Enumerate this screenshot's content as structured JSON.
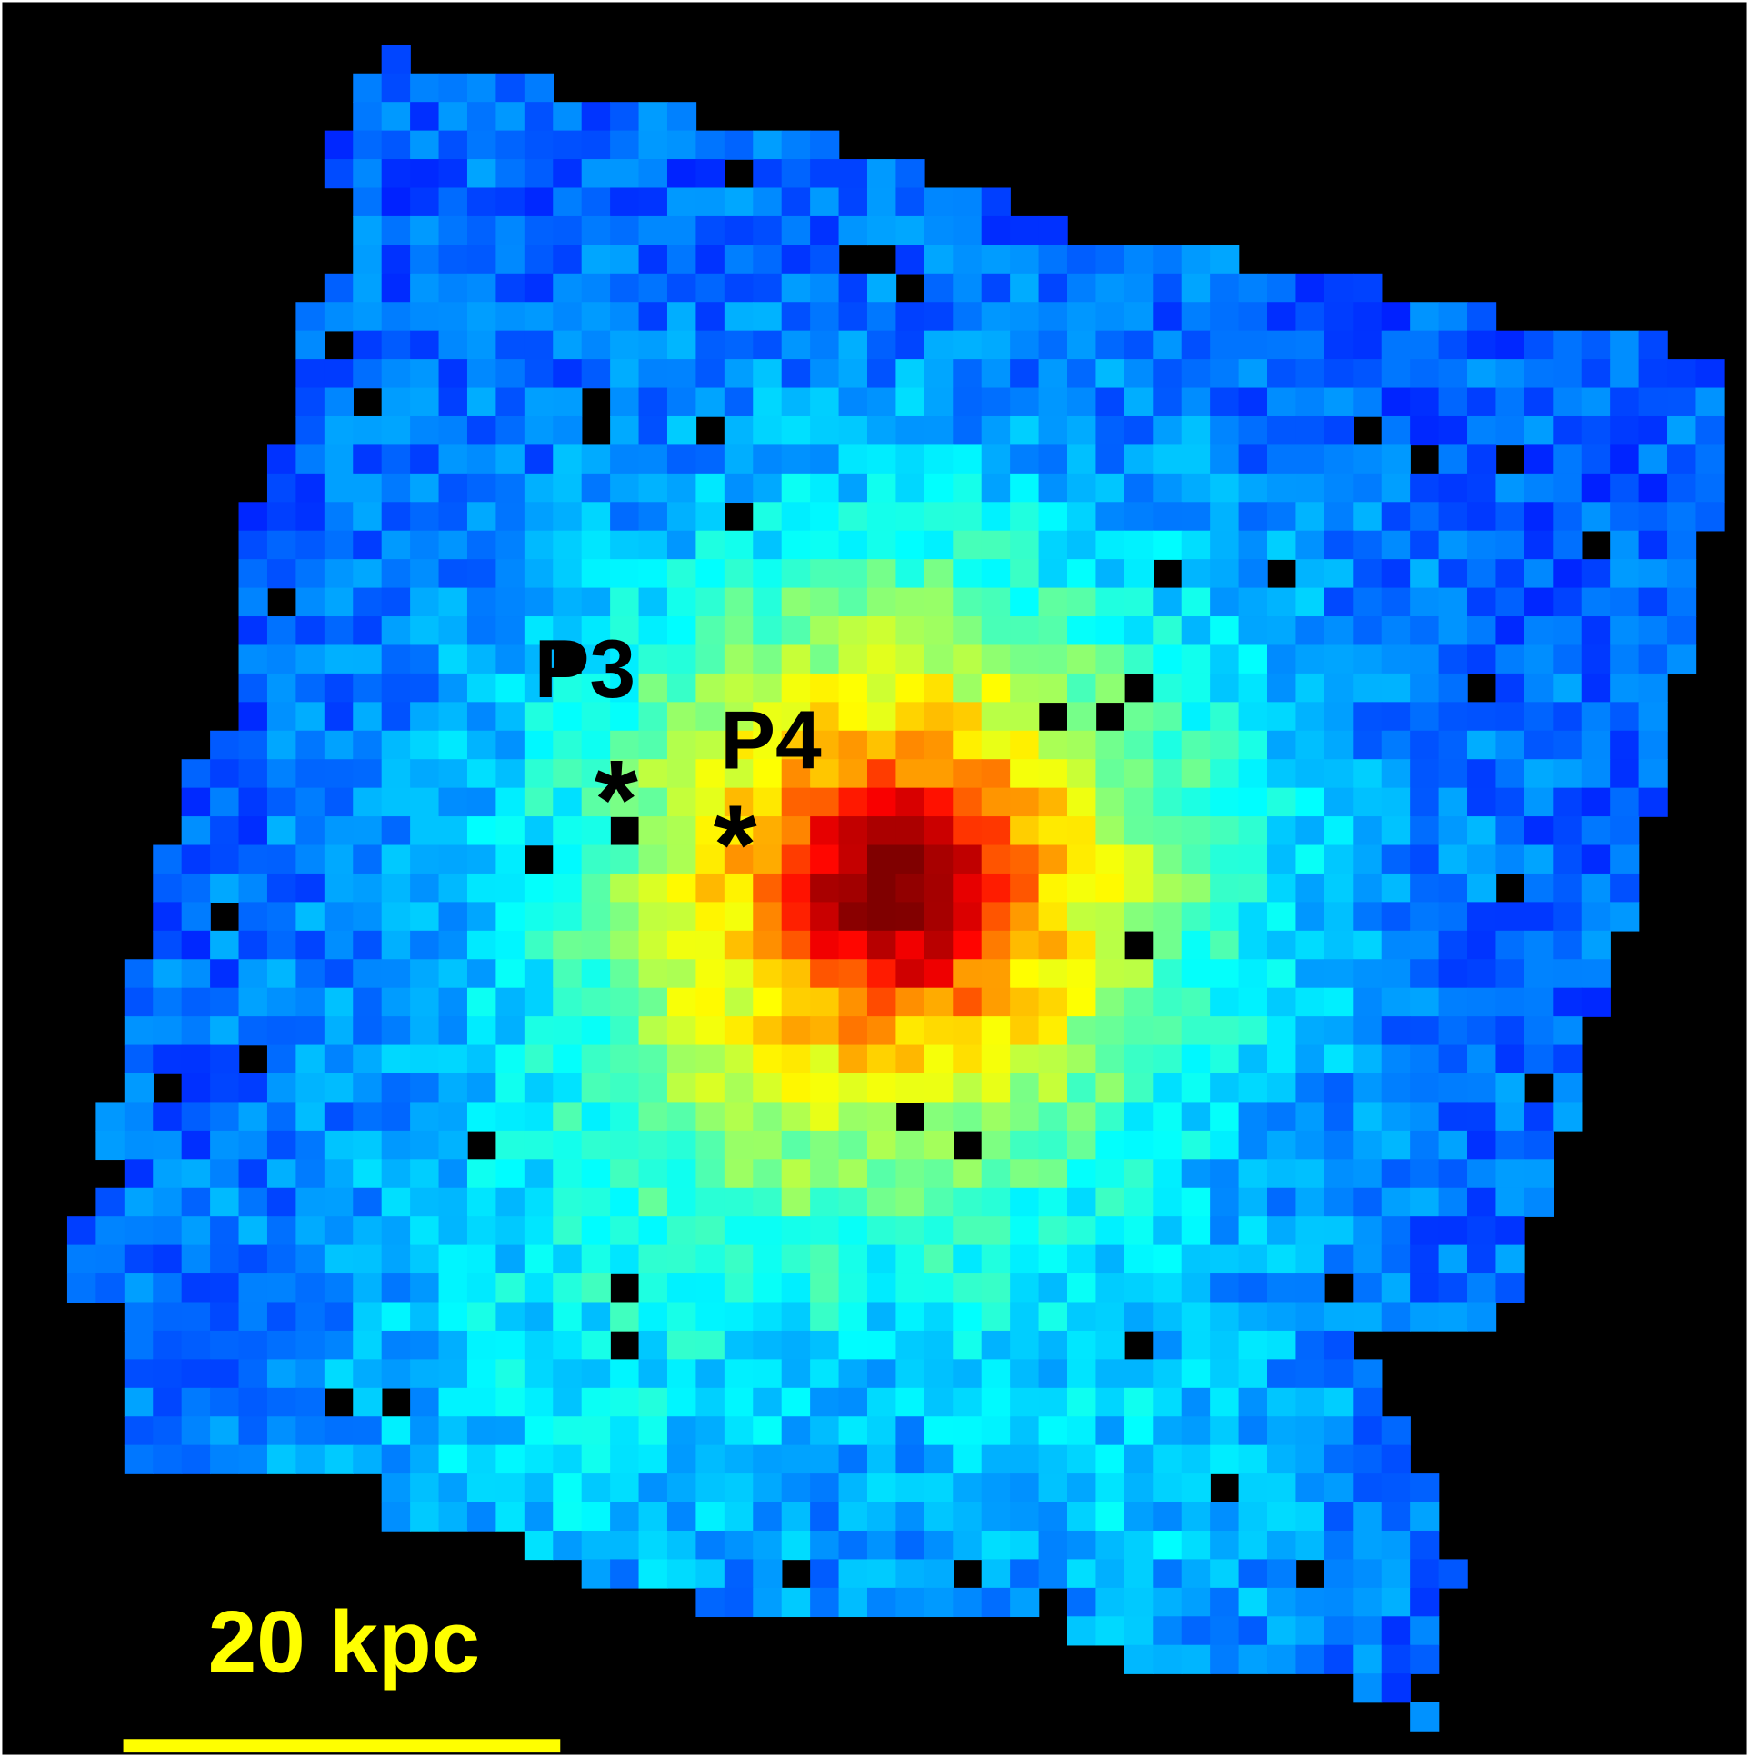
{
  "labels": [
    {
      "name": "P3",
      "marker": "*"
    },
    {
      "name": "P4",
      "marker": "*"
    }
  ],
  "scale_bar": {
    "label": "20 kpc"
  }
}
